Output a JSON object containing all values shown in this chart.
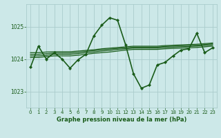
{
  "title": "Graphe pression niveau de la mer (hPa)",
  "bg_color": "#cce8e8",
  "grid_color": "#aacccc",
  "line_color": "#1a5c1a",
  "xlim": [
    -0.5,
    23.5
  ],
  "ylim": [
    1022.5,
    1025.7
  ],
  "yticks": [
    1023,
    1024,
    1025
  ],
  "xticks": [
    0,
    1,
    2,
    3,
    4,
    5,
    6,
    7,
    8,
    9,
    10,
    11,
    12,
    13,
    14,
    15,
    16,
    17,
    18,
    19,
    20,
    21,
    22,
    23
  ],
  "main_line": {
    "x": [
      0,
      1,
      2,
      3,
      4,
      5,
      6,
      7,
      8,
      9,
      10,
      11,
      12,
      13,
      14,
      15,
      16,
      17,
      18,
      19,
      20,
      21,
      22,
      23
    ],
    "y": [
      1023.75,
      1024.4,
      1024.0,
      1024.2,
      1024.0,
      1023.72,
      1023.98,
      1024.15,
      1024.72,
      1025.05,
      1025.28,
      1025.2,
      1024.45,
      1023.55,
      1023.1,
      1023.2,
      1023.82,
      1023.9,
      1024.1,
      1024.28,
      1024.32,
      1024.8,
      1024.2,
      1024.35
    ],
    "marker": "D",
    "markersize": 2.0,
    "linewidth": 1.2
  },
  "flat_lines": [
    {
      "x": [
        0,
        1,
        2,
        3,
        4,
        5,
        6,
        7,
        8,
        9,
        10,
        11,
        12,
        13,
        14,
        15,
        16,
        17,
        18,
        19,
        20,
        21,
        22,
        23
      ],
      "y": [
        1024.05,
        1024.05,
        1024.08,
        1024.1,
        1024.1,
        1024.1,
        1024.12,
        1024.15,
        1024.18,
        1024.2,
        1024.22,
        1024.25,
        1024.28,
        1024.3,
        1024.3,
        1024.3,
        1024.3,
        1024.32,
        1024.33,
        1024.34,
        1024.35,
        1024.36,
        1024.38,
        1024.4
      ]
    },
    {
      "x": [
        0,
        1,
        2,
        3,
        4,
        5,
        6,
        7,
        8,
        9,
        10,
        11,
        12,
        13,
        14,
        15,
        16,
        17,
        18,
        19,
        20,
        21,
        22,
        23
      ],
      "y": [
        1024.1,
        1024.1,
        1024.12,
        1024.15,
        1024.15,
        1024.15,
        1024.17,
        1024.2,
        1024.22,
        1024.25,
        1024.27,
        1024.3,
        1024.32,
        1024.34,
        1024.34,
        1024.34,
        1024.34,
        1024.36,
        1024.37,
        1024.38,
        1024.39,
        1024.4,
        1024.42,
        1024.44
      ]
    },
    {
      "x": [
        0,
        1,
        2,
        3,
        4,
        5,
        6,
        7,
        8,
        9,
        10,
        11,
        12,
        13,
        14,
        15,
        16,
        17,
        18,
        19,
        20,
        21,
        22,
        23
      ],
      "y": [
        1024.15,
        1024.15,
        1024.17,
        1024.19,
        1024.19,
        1024.19,
        1024.21,
        1024.24,
        1024.26,
        1024.29,
        1024.31,
        1024.33,
        1024.35,
        1024.37,
        1024.37,
        1024.37,
        1024.37,
        1024.39,
        1024.4,
        1024.41,
        1024.42,
        1024.43,
        1024.45,
        1024.47
      ]
    },
    {
      "x": [
        0,
        1,
        2,
        3,
        4,
        5,
        6,
        7,
        8,
        9,
        10,
        11,
        12,
        13,
        14,
        15,
        16,
        17,
        18,
        19,
        20,
        21,
        22,
        23
      ],
      "y": [
        1024.2,
        1024.2,
        1024.22,
        1024.23,
        1024.23,
        1024.23,
        1024.25,
        1024.27,
        1024.29,
        1024.32,
        1024.34,
        1024.36,
        1024.38,
        1024.4,
        1024.4,
        1024.4,
        1024.4,
        1024.42,
        1024.43,
        1024.44,
        1024.45,
        1024.46,
        1024.48,
        1024.5
      ]
    }
  ],
  "figwidth": 3.2,
  "figheight": 2.0,
  "dpi": 100
}
